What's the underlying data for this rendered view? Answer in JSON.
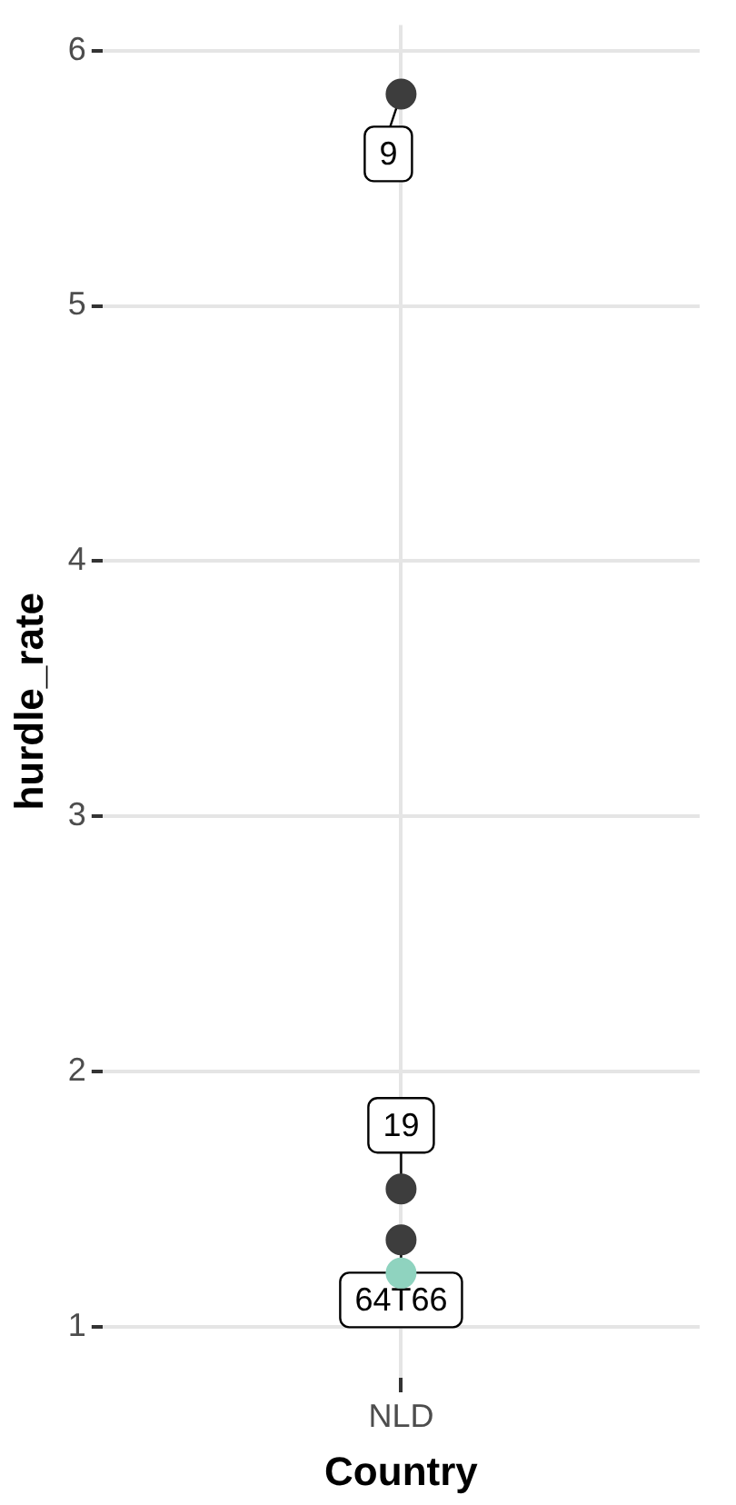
{
  "chart_data": {
    "type": "scatter",
    "xlabel": "Country",
    "ylabel": "hurdle_rate",
    "categories": [
      "NLD"
    ],
    "series": [
      {
        "x": [
          "NLD",
          "NLD",
          "NLD",
          "NLD"
        ],
        "values": [
          5.83,
          1.54,
          1.34,
          1.21
        ],
        "colors": [
          "#3d3d3d",
          "#3d3d3d",
          "#3d3d3d",
          "#8fd3bf"
        ]
      }
    ],
    "annotations": [
      {
        "text": "9",
        "x": "NLD",
        "y": 5.83
      },
      {
        "text": "19",
        "x": "NLD",
        "y": 1.54
      },
      {
        "text": "64T66",
        "x": "NLD",
        "y": 1.34
      }
    ],
    "ylim": [
      0.8,
      6.1
    ],
    "yticks": [
      1,
      2,
      3,
      4,
      5,
      6
    ],
    "grid": true,
    "marker": "circle"
  }
}
